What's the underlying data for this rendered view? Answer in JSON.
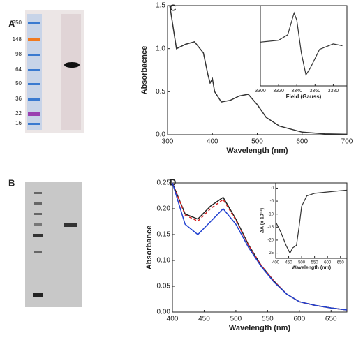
{
  "panel_labels": [
    "A",
    "B",
    "C",
    "D"
  ],
  "gel_a": {
    "markers": [
      250,
      148,
      98,
      64,
      50,
      36,
      22,
      16
    ]
  },
  "chart_data": [
    {
      "type": "line",
      "x_label": "Wavelength (nm)",
      "y_label": "Absorbacnce",
      "color": "#333333",
      "x": [
        305,
        320,
        340,
        360,
        380,
        390,
        395,
        400,
        405,
        420,
        440,
        460,
        480,
        500,
        520,
        550,
        600,
        650,
        700
      ],
      "values": [
        1.5,
        1.0,
        1.05,
        1.08,
        0.95,
        0.7,
        0.6,
        0.65,
        0.5,
        0.38,
        0.4,
        0.45,
        0.47,
        0.35,
        0.2,
        0.1,
        0.03,
        0.01,
        0.005
      ],
      "xlim": [
        300,
        700
      ],
      "xticks": [
        300,
        400,
        500,
        600,
        700
      ],
      "ylim": [
        0,
        1.5
      ],
      "yticks": [
        {
          "value": 0,
          "label": "0.0"
        },
        {
          "value": 0.5,
          "label": "0.5"
        },
        {
          "value": 1,
          "label": "1.0"
        },
        {
          "value": 1.5,
          "label": "1.5"
        }
      ]
    },
    {
      "type": "line",
      "x_label": "Field (Gauss)",
      "color": "#333333",
      "x": [
        3300,
        3320,
        3330,
        3337,
        3340,
        3345,
        3350,
        3355,
        3365,
        3380,
        3390
      ],
      "values": [
        0.1,
        0.15,
        0.3,
        0.9,
        0.7,
        -0.2,
        -0.8,
        -0.6,
        -0.1,
        0.05,
        0.0
      ],
      "xlim": [
        3300,
        3395
      ],
      "xticks": [
        3300,
        3320,
        3340,
        3360,
        3380
      ],
      "ylim": [
        -1.1,
        1.1
      ]
    },
    {
      "type": "line",
      "x_label": "Wavelength (nm)",
      "y_label": "Absorbance",
      "x": [
        400,
        420,
        440,
        460,
        480,
        500,
        520,
        540,
        560,
        580,
        600,
        625,
        650,
        675
      ],
      "series": [
        {
          "color": "#222222",
          "values": [
            0.25,
            0.19,
            0.18,
            0.205,
            0.222,
            0.18,
            0.13,
            0.09,
            0.06,
            0.035,
            0.02,
            0.013,
            0.008,
            0.004
          ]
        },
        {
          "color": "#d62020",
          "dash": true,
          "values": [
            0.25,
            0.188,
            0.176,
            0.2,
            0.218,
            0.178,
            0.129,
            0.09,
            0.06,
            0.035,
            0.02,
            0.013,
            0.008,
            0.004
          ]
        },
        {
          "color": "#2040d0",
          "values": [
            0.25,
            0.17,
            0.15,
            0.175,
            0.2,
            0.17,
            0.125,
            0.088,
            0.058,
            0.035,
            0.02,
            0.013,
            0.008,
            0.004
          ]
        }
      ],
      "xlim": [
        400,
        675
      ],
      "xticks": [
        400,
        450,
        500,
        550,
        600,
        650
      ],
      "ylim": [
        0,
        0.25
      ],
      "yticks": [
        {
          "value": 0,
          "label": "0.00"
        },
        {
          "value": 0.05,
          "label": "0.05"
        },
        {
          "value": 0.1,
          "label": "0.10"
        },
        {
          "value": 0.15,
          "label": "0.15"
        },
        {
          "value": 0.2,
          "label": "0.20"
        },
        {
          "value": 0.25,
          "label": "0.25"
        }
      ]
    },
    {
      "type": "line",
      "x_label": "Wavelength (nm)",
      "y_label": "ΔA (x 10⁻³)",
      "color": "#333333",
      "x": [
        400,
        420,
        440,
        455,
        465,
        480,
        490,
        500,
        520,
        550,
        600,
        650,
        675
      ],
      "values": [
        -13,
        -17,
        -22,
        -25,
        -23,
        -22,
        -15,
        -7,
        -3,
        -2,
        -1.5,
        -1,
        -0.8
      ],
      "xlim": [
        400,
        675
      ],
      "xticks": [
        400,
        450,
        500,
        550,
        600,
        650
      ],
      "ylim": [
        -27,
        2
      ],
      "yticks": [
        0,
        -5,
        -10,
        -15,
        -20,
        -25
      ]
    }
  ]
}
